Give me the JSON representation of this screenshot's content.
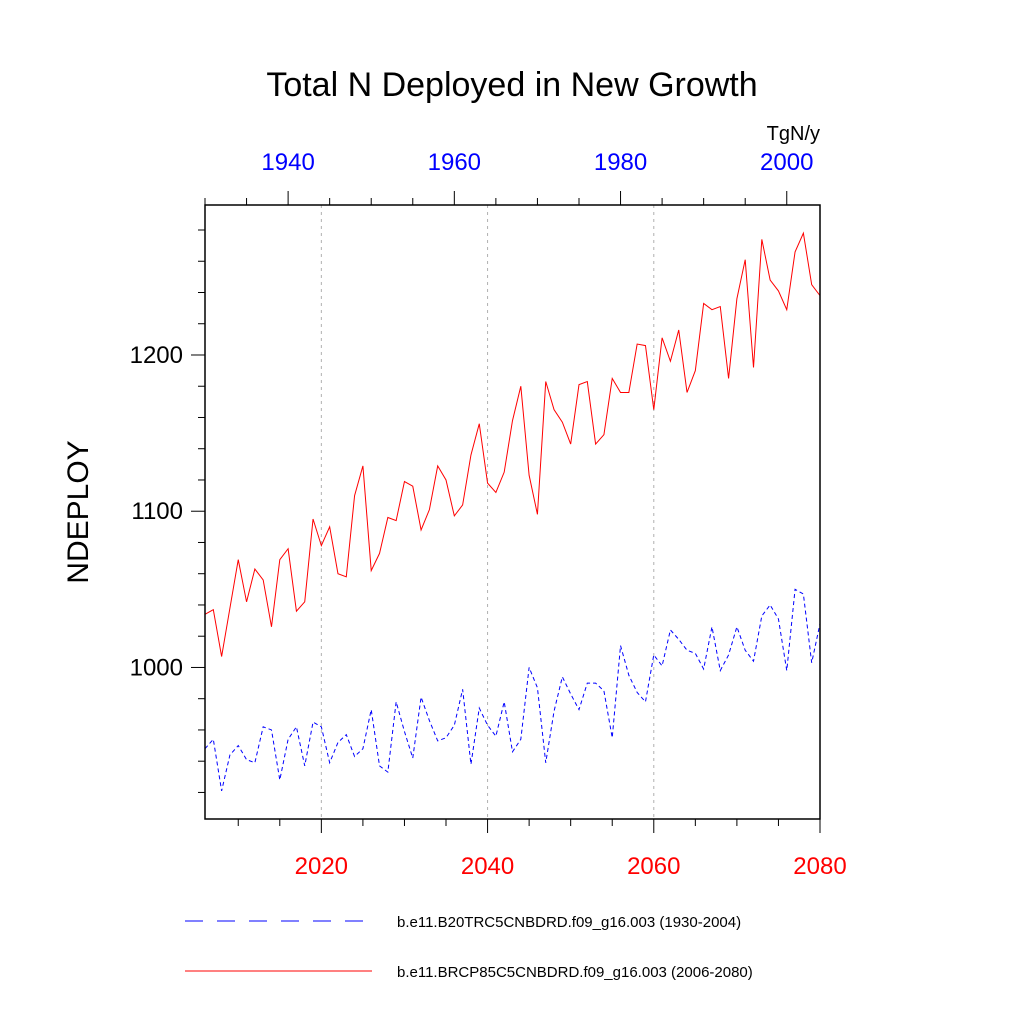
{
  "chart_data": {
    "type": "line",
    "title": "Total N Deployed in New Growth",
    "ylabel": "NDEPLOY",
    "units": "TgN/y",
    "ylim": [
      903,
      1296
    ],
    "yticks": [
      1000,
      1100,
      1200
    ],
    "grid": "vertical dotted at bottom-axis major ticks",
    "bottom_axis": {
      "range": [
        2006,
        2080
      ],
      "ticks": [
        2020,
        2040,
        2060,
        2080
      ],
      "color": "#ff0000"
    },
    "top_axis": {
      "range": [
        1930,
        2004
      ],
      "ticks": [
        1940,
        1960,
        1980,
        2000
      ],
      "color": "#0000ff"
    },
    "series": [
      {
        "name": "b.e11.B20TRC5CNBDRD.f09_g16.003 (1930-2004)",
        "axis": "top",
        "color": "#0000ff",
        "dash": "dashed",
        "x": [
          1930,
          1931,
          1932,
          1933,
          1934,
          1935,
          1936,
          1937,
          1938,
          1939,
          1940,
          1941,
          1942,
          1943,
          1944,
          1945,
          1946,
          1947,
          1948,
          1949,
          1950,
          1951,
          1952,
          1953,
          1954,
          1955,
          1956,
          1957,
          1958,
          1959,
          1960,
          1961,
          1962,
          1963,
          1964,
          1965,
          1966,
          1967,
          1968,
          1969,
          1970,
          1971,
          1972,
          1973,
          1974,
          1975,
          1976,
          1977,
          1978,
          1979,
          1980,
          1981,
          1982,
          1983,
          1984,
          1985,
          1986,
          1987,
          1988,
          1989,
          1990,
          1991,
          1992,
          1993,
          1994,
          1995,
          1996,
          1997,
          1998,
          1999,
          2000,
          2001,
          2002,
          2003,
          2004
        ],
        "values": [
          948,
          954,
          921,
          944,
          950,
          941,
          939,
          962,
          960,
          928,
          954,
          962,
          937,
          965,
          962,
          939,
          952,
          957,
          943,
          948,
          973,
          937,
          933,
          978,
          959,
          942,
          981,
          966,
          953,
          955,
          963,
          986,
          938,
          974,
          963,
          956,
          978,
          946,
          954,
          1000,
          987,
          939,
          972,
          994,
          983,
          973,
          990,
          990,
          985,
          955,
          1014,
          995,
          984,
          978,
          1008,
          1001,
          1024,
          1018,
          1011,
          1009,
          999,
          1026,
          998,
          1008,
          1026,
          1011,
          1004,
          1033,
          1040,
          1031,
          998,
          1050,
          1047,
          1003,
          1028
        ]
      },
      {
        "name": "b.e11.BRCP85C5CNBDRD.f09_g16.003 (2006-2080)",
        "axis": "bottom",
        "color": "#ff0000",
        "dash": "solid",
        "x": [
          2006,
          2007,
          2008,
          2009,
          2010,
          2011,
          2012,
          2013,
          2014,
          2015,
          2016,
          2017,
          2018,
          2019,
          2020,
          2021,
          2022,
          2023,
          2024,
          2025,
          2026,
          2027,
          2028,
          2029,
          2030,
          2031,
          2032,
          2033,
          2034,
          2035,
          2036,
          2037,
          2038,
          2039,
          2040,
          2041,
          2042,
          2043,
          2044,
          2045,
          2046,
          2047,
          2048,
          2049,
          2050,
          2051,
          2052,
          2053,
          2054,
          2055,
          2056,
          2057,
          2058,
          2059,
          2060,
          2061,
          2062,
          2063,
          2064,
          2065,
          2066,
          2067,
          2068,
          2069,
          2070,
          2071,
          2072,
          2073,
          2074,
          2075,
          2076,
          2077,
          2078,
          2079,
          2080
        ],
        "values": [
          1034,
          1037,
          1007,
          1038,
          1069,
          1042,
          1063,
          1056,
          1026,
          1069,
          1076,
          1036,
          1042,
          1095,
          1078,
          1090,
          1060,
          1058,
          1110,
          1129,
          1062,
          1073,
          1096,
          1094,
          1119,
          1116,
          1088,
          1101,
          1129,
          1120,
          1097,
          1104,
          1136,
          1156,
          1118,
          1112,
          1125,
          1158,
          1180,
          1123,
          1098,
          1183,
          1165,
          1157,
          1143,
          1181,
          1183,
          1143,
          1149,
          1185,
          1176,
          1176,
          1207,
          1206,
          1165,
          1211,
          1196,
          1216,
          1176,
          1190,
          1233,
          1229,
          1231,
          1185,
          1236,
          1261,
          1192,
          1274,
          1248,
          1241,
          1229,
          1266,
          1278,
          1245,
          1238
        ]
      }
    ],
    "legend_position": "bottom"
  }
}
